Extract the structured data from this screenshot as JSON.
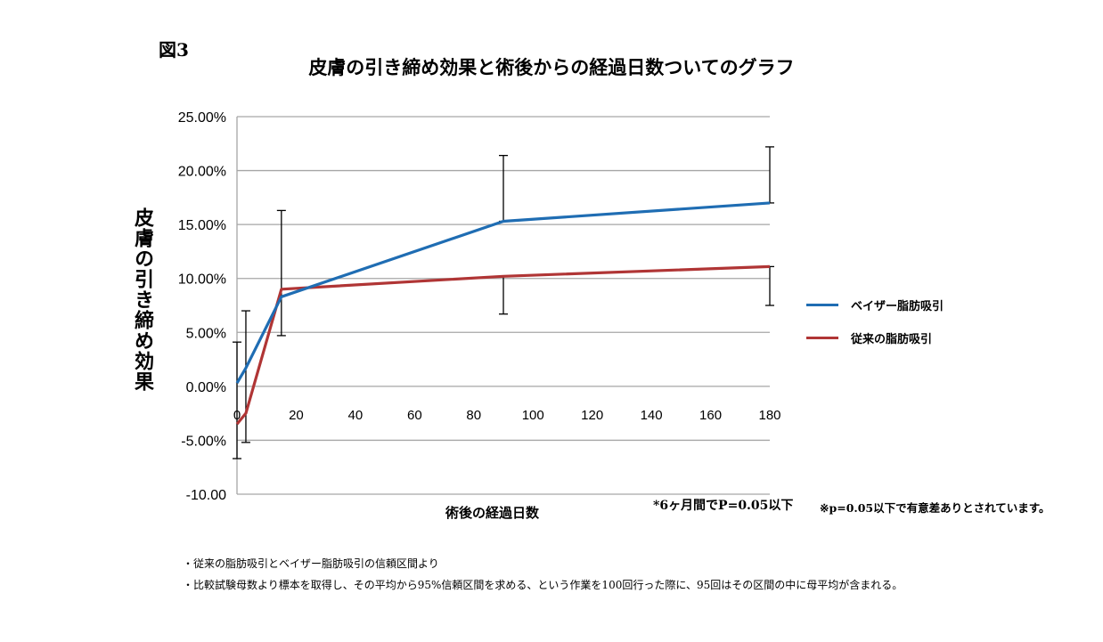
{
  "figure_label": "図3",
  "chart_data": {
    "type": "line",
    "title": "皮膚の引き締め効果と術後からの経過日数ついてのグラフ",
    "xlabel": "術後の経過日数",
    "ylabel": "皮膚の引き締め効果",
    "xlim": [
      0,
      180
    ],
    "ylim": [
      -10,
      25
    ],
    "x_ticks": [
      0,
      20,
      40,
      60,
      80,
      100,
      120,
      140,
      160,
      180
    ],
    "x_tick_labels": [
      "0",
      "20",
      "40",
      "60",
      "80",
      "100",
      "120",
      "140",
      "160",
      "180"
    ],
    "y_ticks": [
      25,
      20,
      15,
      10,
      5,
      0,
      -5,
      -10
    ],
    "y_tick_labels": [
      "25.00%",
      "20.00%",
      "15.00%",
      "10.00%",
      "5.00%",
      "0.00%",
      "-5.00%",
      "-10.00"
    ],
    "grid": true,
    "legend_position": "right",
    "series": [
      {
        "name": "ベイザー脂肪吸引",
        "color": "#1f6db3",
        "x": [
          0,
          3,
          15,
          90,
          180
        ],
        "y": [
          0.3,
          1.7,
          8.3,
          15.3,
          17.0
        ],
        "error_low": [
          -6.7,
          null,
          null,
          15.3,
          17.0
        ],
        "error_high": [
          4.1,
          null,
          null,
          21.4,
          22.2
        ]
      },
      {
        "name": "従来の脂肪吸引",
        "color": "#b03535",
        "x": [
          0,
          3,
          15,
          90,
          180
        ],
        "y": [
          -3.5,
          -2.5,
          9.0,
          10.2,
          11.1
        ],
        "error_low": [
          null,
          -5.2,
          4.7,
          6.7,
          7.5
        ],
        "error_high": [
          null,
          7.0,
          16.3,
          10.2,
          11.1
        ]
      }
    ]
  },
  "notes": {
    "significance": "*6ヶ月間でP=0.05以下",
    "p_value": "※p=0.05以下で有意差ありとされています。",
    "line1": "・従来の脂肪吸引とベイザー脂肪吸引の信頼区間より",
    "line2": "・比較試験母数より標本を取得し、その平均から95%信頼区間を求める、という作業を100回行った際に、95回はその区間の中に母平均が含まれる。"
  }
}
